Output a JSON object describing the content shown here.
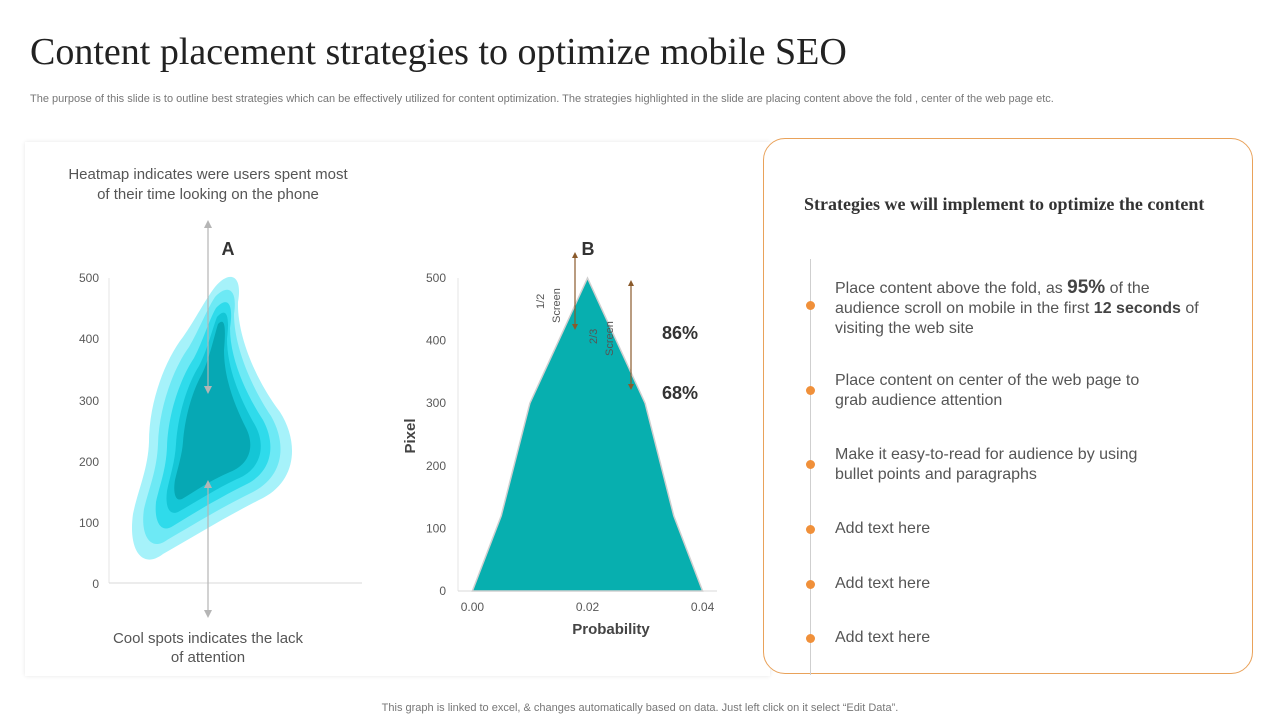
{
  "header": {
    "title": "Content placement strategies to optimize mobile SEO",
    "subtitle": "The purpose of this slide is to outline best strategies which can be effectively utilized for content optimization. The strategies highlighted in the slide are placing content above the fold ,  center of the web page etc."
  },
  "left_panel": {
    "heatmap_caption": [
      "Heatmap indicates were users spent most",
      "of their time looking on the phone"
    ],
    "coolspot_caption": [
      "Cool spots indicates the lack",
      "of attention"
    ],
    "label_a": "A",
    "label_b": "B",
    "screen_half": [
      "1/2",
      "Screen"
    ],
    "screen_two_thirds": [
      "2/3",
      "Screen"
    ],
    "pct_86": "86%",
    "pct_68": "68%"
  },
  "chart_data": [
    {
      "type": "area",
      "label": "A",
      "y_ticks": [
        "500",
        "400",
        "300",
        "200",
        "100",
        "0"
      ],
      "ylim": [
        0,
        500
      ],
      "heatmap_colors": [
        "#a6f2fa",
        "#6de9f5",
        "#2fdbeb",
        "#14c6d6",
        "#06a8b4"
      ]
    },
    {
      "type": "area",
      "label": "B",
      "xlabel": "Probability",
      "ylabel": "Pixel",
      "x_tick_labels": [
        "0.00",
        "0.02",
        "0.04"
      ],
      "y_tick_labels": [
        "0",
        "100",
        "200",
        "300",
        "400",
        "500"
      ],
      "xlim": [
        -0.0025,
        0.0425
      ],
      "ylim": [
        0,
        500
      ],
      "x": [
        0.0,
        0.005,
        0.01,
        0.02,
        0.03,
        0.035,
        0.04
      ],
      "y": [
        0,
        120,
        300,
        500,
        300,
        120,
        0
      ],
      "color": "#07afaf"
    }
  ],
  "strategies": {
    "title": "Strategies we will implement to optimize the content",
    "item1": {
      "pre": "Place content above the fold, as ",
      "highlight1": "95%",
      "mid": " of the audience scroll on mobile in the first ",
      "highlight2": "12 seconds",
      "post": " of visiting the web site"
    },
    "item2": "Place content on center of the web page to grab audience attention",
    "item3": "Make it easy-to-read for audience by using bullet points and paragraphs",
    "item4": "Add text here",
    "item5": "Add text here",
    "item6": "Add text here",
    "dot_color": "#f0903a",
    "border_color": "#e9a25a"
  },
  "footnote": "This graph is linked to excel,  & changes automatically based on data. Just left click on it select “Edit Data”."
}
